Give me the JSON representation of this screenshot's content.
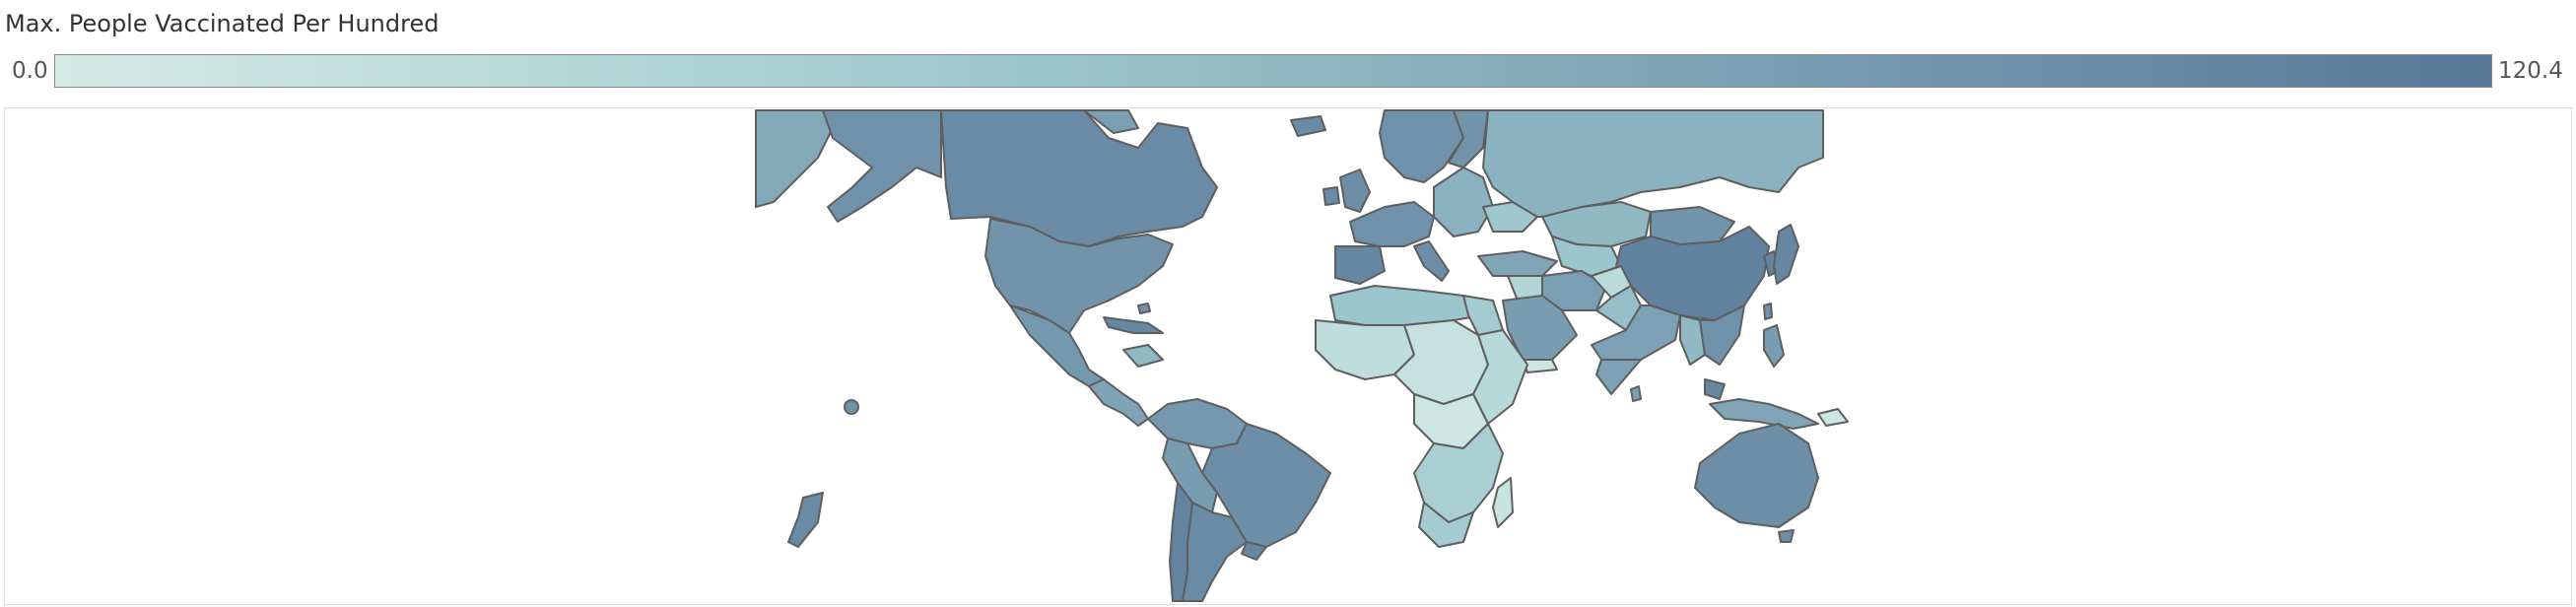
{
  "legend": {
    "title": "Max. People Vaccinated Per Hundred",
    "min_label": "0.0",
    "max_label": "120.4",
    "min_value": 0.0,
    "max_value": 120.4,
    "color_low": "#d4ebe5",
    "color_high": "#587797"
  },
  "map": {
    "measure": "Max. People Vaccinated Per Hundred"
  }
}
